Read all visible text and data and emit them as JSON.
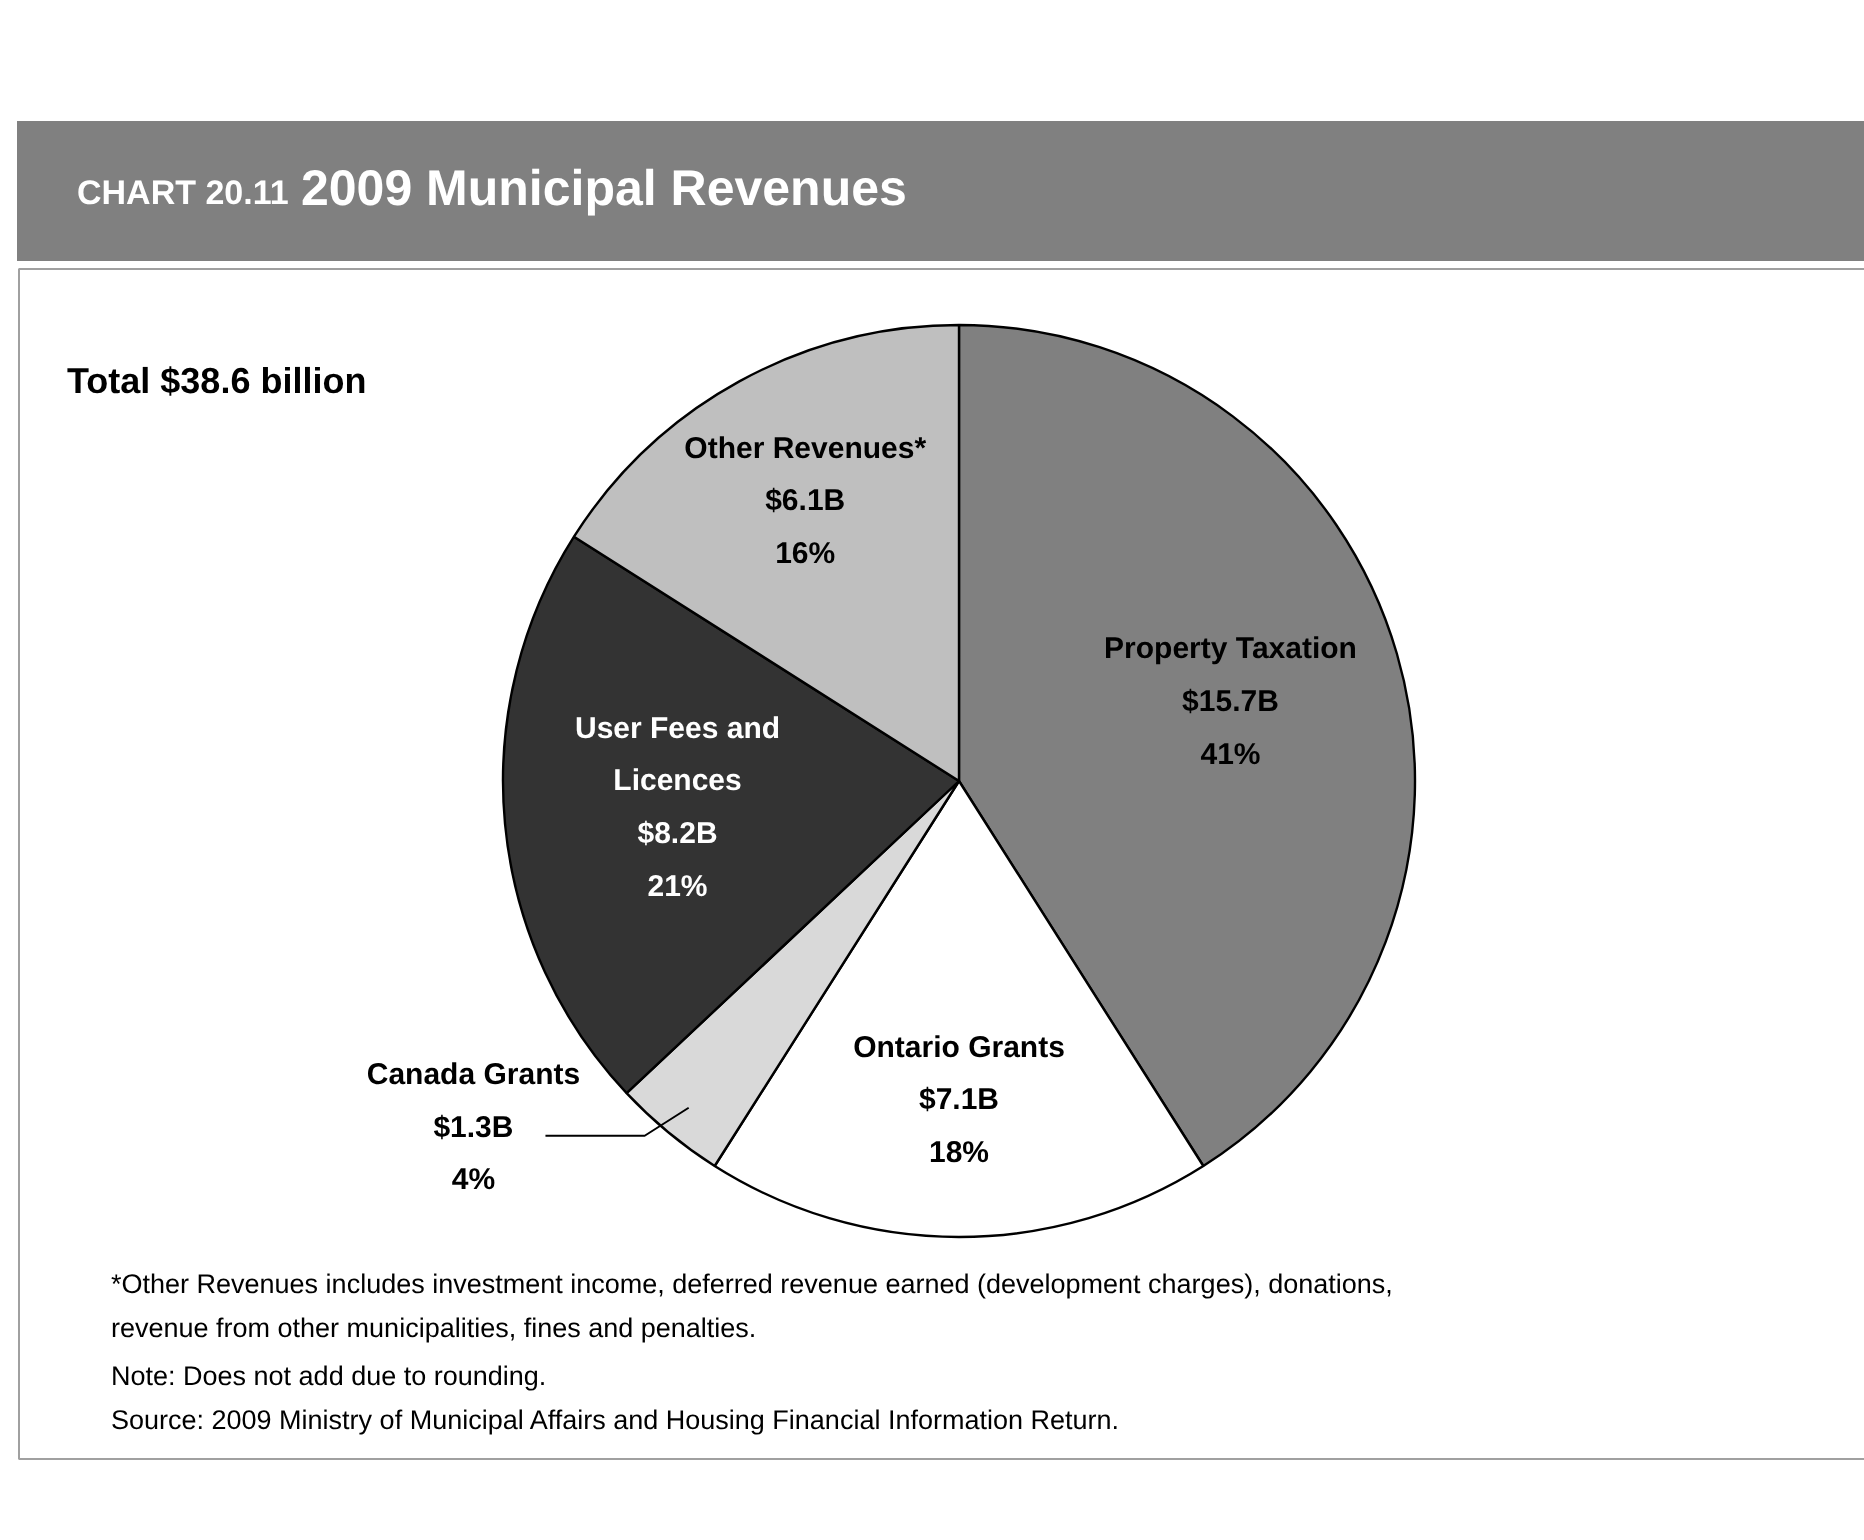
{
  "chart_data": {
    "type": "pie",
    "subtitle": "CHART 20.11",
    "title": "2009 Municipal Revenues",
    "categories": [
      "Property Taxation\n$15.7B",
      "Ontario Grants\n$7.1B",
      "Canada Grants\n$1.3B",
      "User Fees and\nLicences\n$8.2B",
      "Other Revenues*\n$6.1B"
    ],
    "values": [
      41,
      18,
      4,
      21,
      16
    ],
    "value_labels": [
      "41%",
      "18%",
      "4%",
      "21%",
      "16%"
    ],
    "colors": [
      "#808080",
      "#ffffff",
      "#d9d9d9",
      "#333333",
      "#bfbfbf"
    ],
    "annotations": [
      "Total $38.6 billion",
      "*Other Revenues includes investment income, deferred revenue earned (development charges), donations,\nrevenue from other municipalities, fines and penalties.",
      "Note: Does not add due to rounding.",
      "Source: 2009 Ministry of Municipal Affairs and Housing Financial Information Return."
    ]
  }
}
